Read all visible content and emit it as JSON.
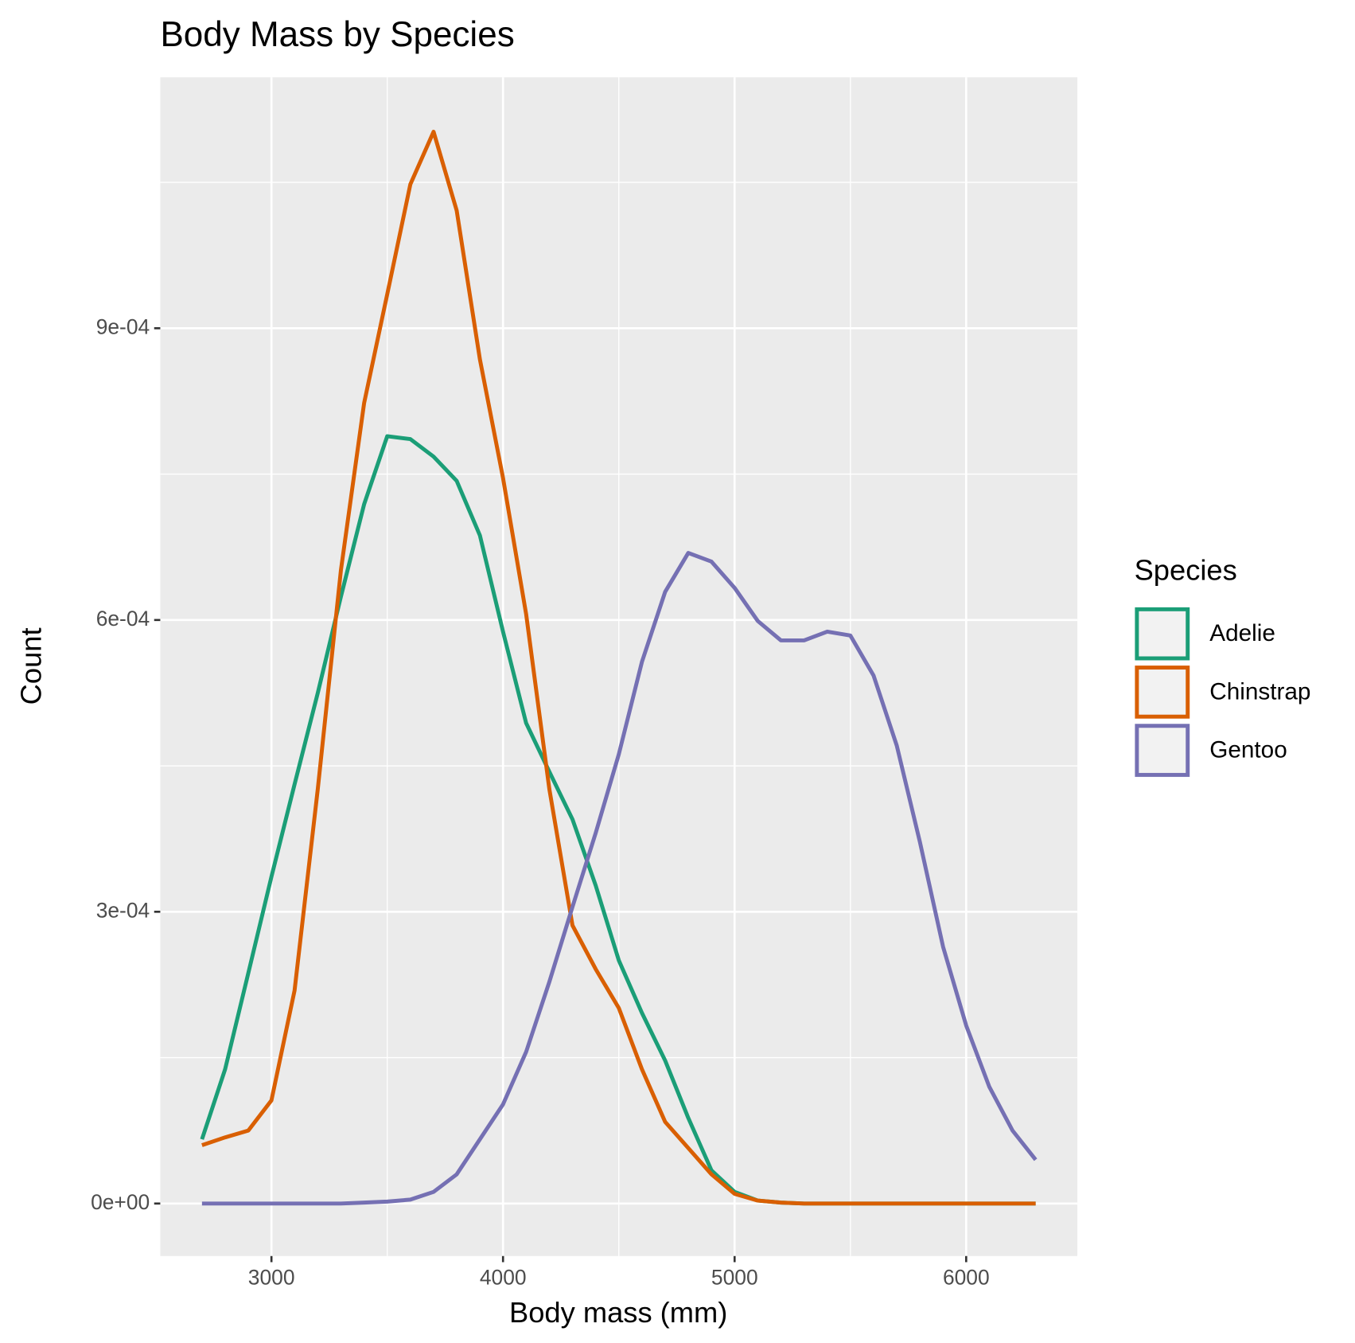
{
  "chart_data": {
    "type": "density",
    "title": "Body Mass by Species",
    "x_label": "Body mass (mm)",
    "y_label": "Count",
    "legend_title": "Species",
    "legend": "right",
    "grid": true,
    "x": [
      2700,
      2800,
      2900,
      3000,
      3100,
      3200,
      3300,
      3400,
      3500,
      3600,
      3700,
      3800,
      3900,
      4000,
      4100,
      4200,
      4300,
      4400,
      4500,
      4600,
      4700,
      4800,
      4900,
      5000,
      5100,
      5200,
      5300,
      5400,
      5500,
      5600,
      5700,
      5800,
      5900,
      6000,
      6100,
      6200,
      6300
    ],
    "series": [
      {
        "name": "Adelie",
        "color": "#1b9e77",
        "values": [
          6.6e-05,
          0.000138,
          0.000237,
          0.000336,
          0.000431,
          0.000525,
          0.000624,
          0.000719,
          0.000789,
          0.000786,
          0.000768,
          0.000743,
          0.000687,
          0.000588,
          0.000494,
          0.000444,
          0.000395,
          0.000327,
          0.00025,
          0.000196,
          0.000147,
          8.8e-05,
          3.4e-05,
          1.2e-05,
          3e-06,
          1e-06,
          0,
          0,
          0,
          0,
          0,
          0,
          0,
          0,
          0,
          0,
          0
        ]
      },
      {
        "name": "Chinstrap",
        "color": "#d95f02",
        "values": [
          6e-05,
          6.8e-05,
          7.5e-05,
          0.000106,
          0.000219,
          0.000426,
          0.000651,
          0.000823,
          0.000935,
          0.001048,
          0.001102,
          0.001021,
          0.000868,
          0.000746,
          0.000606,
          0.000426,
          0.000286,
          0.000241,
          0.000201,
          0.000138,
          8.4e-05,
          5.7e-05,
          3e-05,
          1e-05,
          3e-06,
          1e-06,
          0,
          0,
          0,
          0,
          0,
          0,
          0,
          0,
          0,
          0,
          0
        ]
      },
      {
        "name": "Gentoo",
        "color": "#7570b3",
        "values": [
          0,
          0,
          0,
          0,
          0,
          0,
          0,
          1e-06,
          2e-06,
          4e-06,
          1.2e-05,
          3e-05,
          6.6e-05,
          0.000102,
          0.000156,
          0.000228,
          0.000305,
          0.000381,
          0.000462,
          0.000557,
          0.000629,
          0.000669,
          0.00066,
          0.000633,
          0.000599,
          0.000579,
          0.000579,
          0.000588,
          0.000584,
          0.000543,
          0.000471,
          0.000372,
          0.000264,
          0.000183,
          0.00012,
          7.5e-05,
          4.5e-05
        ]
      }
    ],
    "xlim": [
      2520,
      6480
    ],
    "xticks": [
      3000,
      4000,
      5000,
      6000
    ],
    "minor_xticks": [
      3500,
      4500,
      5500
    ],
    "ylim": [
      -5.4e-05,
      0.001158
    ],
    "yticks": [
      {
        "value": 0,
        "label": "0e+00"
      },
      {
        "value": 0.0003,
        "label": "3e-04"
      },
      {
        "value": 0.0006,
        "label": "6e-04"
      },
      {
        "value": 0.0009,
        "label": "9e-04"
      }
    ],
    "minor_yticks": [
      0.00015,
      0.00045,
      0.00075,
      0.00105
    ]
  }
}
